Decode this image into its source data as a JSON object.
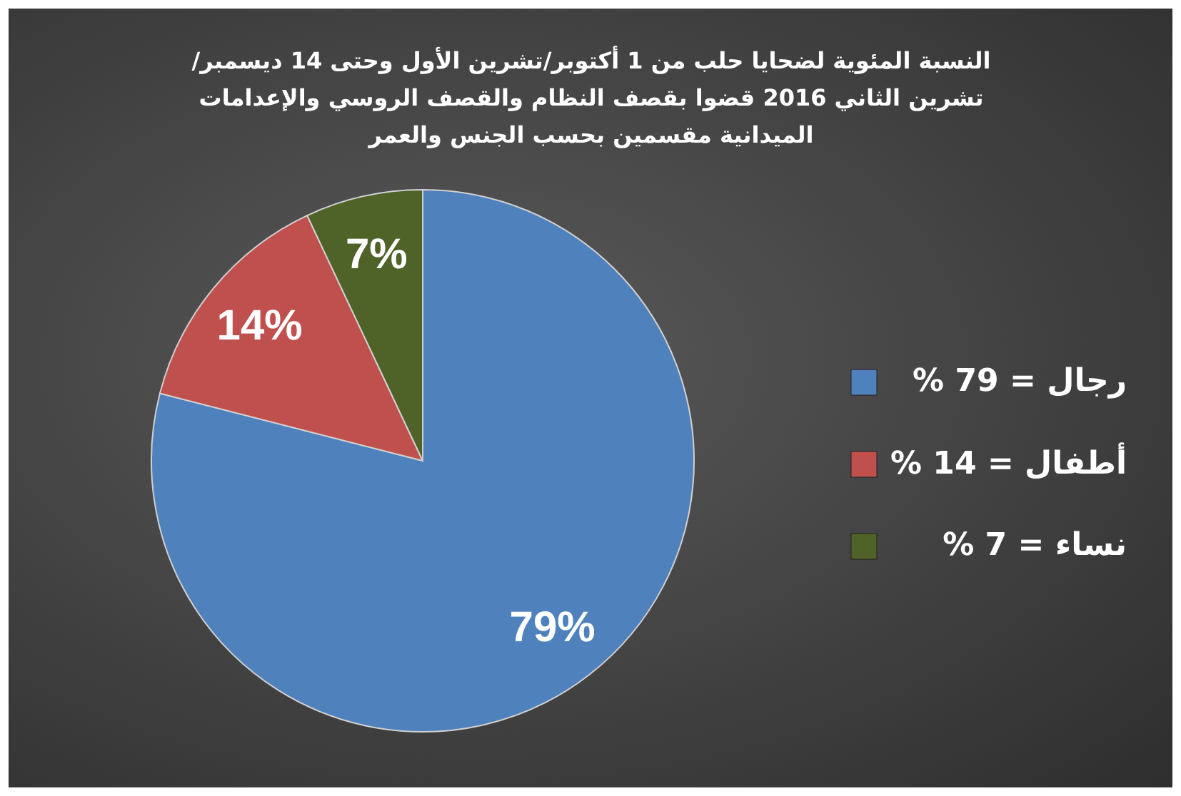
{
  "chart_data": {
    "type": "pie",
    "title": "النسبة المئوية لضحايا حلب من 1 أكتوبر/تشرين الأول وحتى 14 ديسمبر/تشرين الثاني 2016 قضوا بقصف النظام والقصف الروسي والإعدامات الميدانية مقسمين بحسب الجنس والعمر",
    "categories": [
      "رجال = 79 %",
      "أطفال = 14 %",
      "نساء = 7 %"
    ],
    "values": [
      79,
      14,
      7
    ],
    "colors": [
      "#4f81bd",
      "#c0504d",
      "#4f6228"
    ],
    "value_labels": [
      "79%",
      "14%",
      "7%"
    ],
    "legend": "right"
  }
}
